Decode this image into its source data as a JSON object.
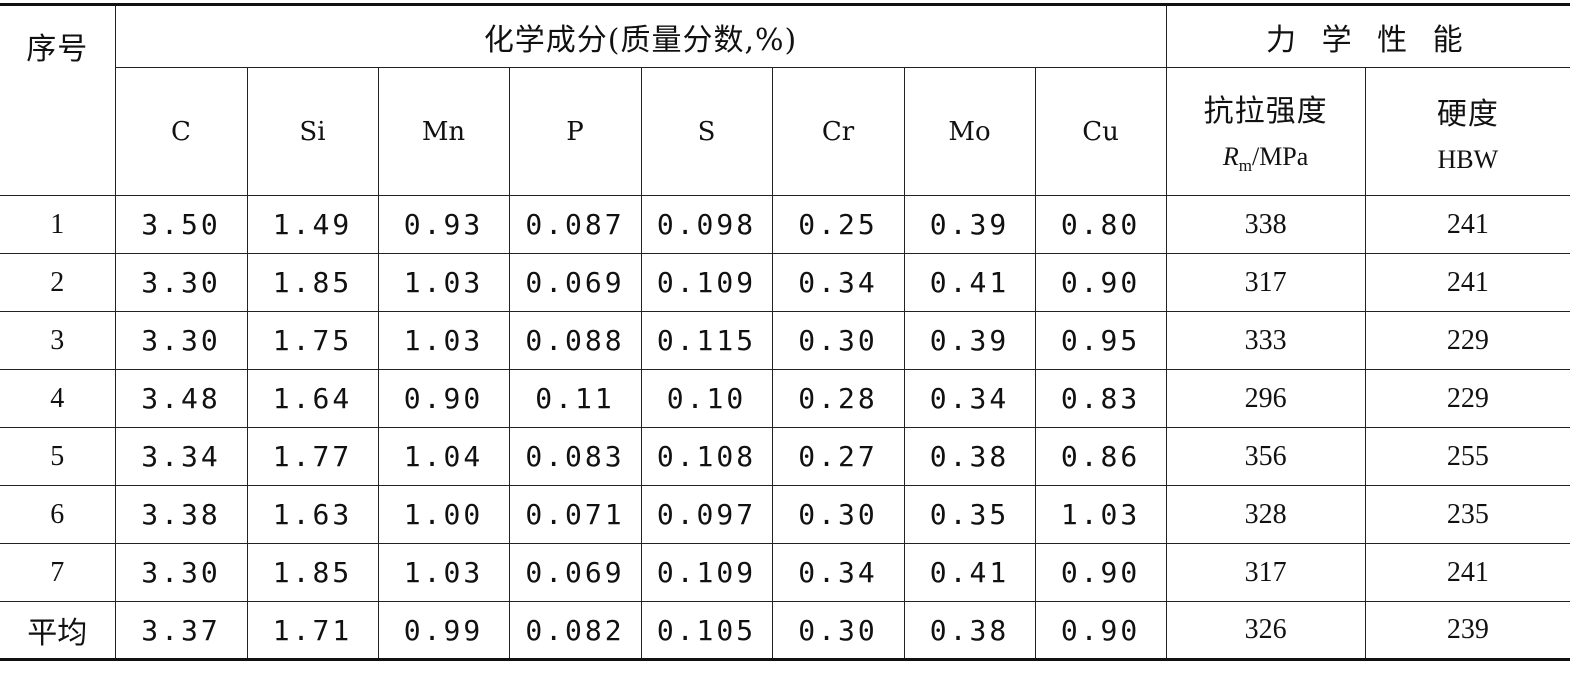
{
  "header": {
    "seq_label": "序号",
    "chem_group": "化学成分(质量分数,%)",
    "mech_group": "力 学 性 能",
    "elements": [
      "C",
      "Si",
      "Mn",
      "P",
      "S",
      "Cr",
      "Mo",
      "Cu"
    ],
    "tensile": {
      "label": "抗拉强度",
      "symbol": "R",
      "subscript": "m",
      "unit": "/MPa"
    },
    "hardness": {
      "label": "硬度",
      "unit": "HBW"
    }
  },
  "rows": [
    {
      "seq": "1",
      "C": "3.50",
      "Si": "1.49",
      "Mn": "0.93",
      "P": "0.087",
      "S": "0.098",
      "Cr": "0.25",
      "Mo": "0.39",
      "Cu": "0.80",
      "Rm": "338",
      "HBW": "241"
    },
    {
      "seq": "2",
      "C": "3.30",
      "Si": "1.85",
      "Mn": "1.03",
      "P": "0.069",
      "S": "0.109",
      "Cr": "0.34",
      "Mo": "0.41",
      "Cu": "0.90",
      "Rm": "317",
      "HBW": "241"
    },
    {
      "seq": "3",
      "C": "3.30",
      "Si": "1.75",
      "Mn": "1.03",
      "P": "0.088",
      "S": "0.115",
      "Cr": "0.30",
      "Mo": "0.39",
      "Cu": "0.95",
      "Rm": "333",
      "HBW": "229"
    },
    {
      "seq": "4",
      "C": "3.48",
      "Si": "1.64",
      "Mn": "0.90",
      "P": "0.11",
      "S": "0.10",
      "Cr": "0.28",
      "Mo": "0.34",
      "Cu": "0.83",
      "Rm": "296",
      "HBW": "229"
    },
    {
      "seq": "5",
      "C": "3.34",
      "Si": "1.77",
      "Mn": "1.04",
      "P": "0.083",
      "S": "0.108",
      "Cr": "0.27",
      "Mo": "0.38",
      "Cu": "0.86",
      "Rm": "356",
      "HBW": "255"
    },
    {
      "seq": "6",
      "C": "3.38",
      "Si": "1.63",
      "Mn": "1.00",
      "P": "0.071",
      "S": "0.097",
      "Cr": "0.30",
      "Mo": "0.35",
      "Cu": "1.03",
      "Rm": "328",
      "HBW": "235"
    },
    {
      "seq": "7",
      "C": "3.30",
      "Si": "1.85",
      "Mn": "1.03",
      "P": "0.069",
      "S": "0.109",
      "Cr": "0.34",
      "Mo": "0.41",
      "Cu": "0.90",
      "Rm": "317",
      "HBW": "241"
    },
    {
      "seq": "平均",
      "C": "3.37",
      "Si": "1.71",
      "Mn": "0.99",
      "P": "0.082",
      "S": "0.105",
      "Cr": "0.30",
      "Mo": "0.38",
      "Cu": "0.90",
      "Rm": "326",
      "HBW": "239"
    }
  ]
}
